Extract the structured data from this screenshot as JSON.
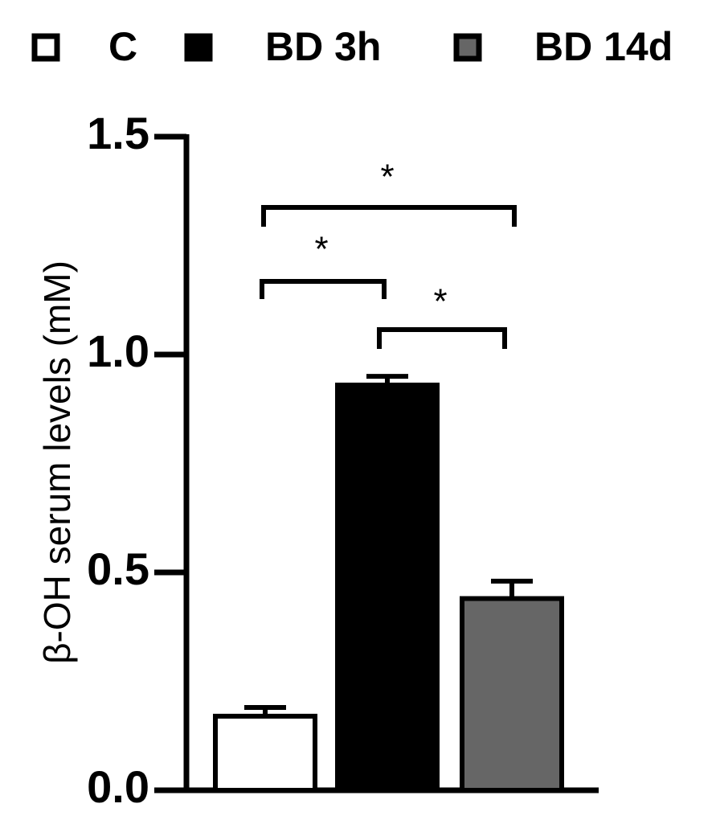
{
  "chart_data": {
    "type": "bar",
    "y_label": "β-OH serum levels (mM)",
    "series": [
      {
        "name": "C",
        "color": "#ffffff",
        "values": [
          0.17
        ],
        "errors": [
          0.02
        ]
      },
      {
        "name": "BD 3h",
        "color": "#000000",
        "values": [
          0.93
        ],
        "errors": [
          0.02
        ]
      },
      {
        "name": "BD 14d",
        "color": "#666666",
        "values": [
          0.44
        ],
        "errors": [
          0.04
        ]
      }
    ],
    "ylim": [
      0,
      1.5
    ],
    "yticks": [
      {
        "value": 0,
        "label": "0.0"
      },
      {
        "value": 0.5,
        "label": "0.5"
      },
      {
        "value": 1,
        "label": "1.0"
      },
      {
        "value": 1.5,
        "label": "1.5"
      }
    ],
    "annotations": [
      "*",
      "*",
      "*"
    ]
  }
}
